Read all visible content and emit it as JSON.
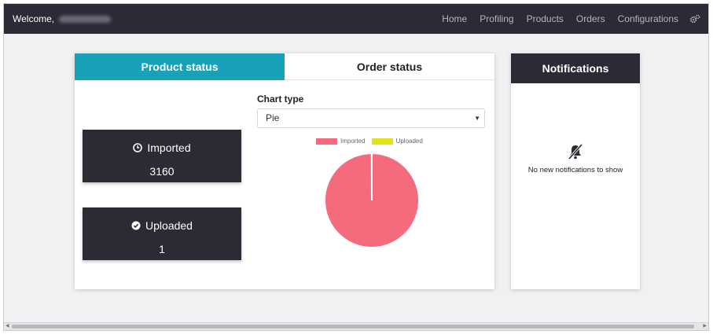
{
  "navbar": {
    "welcome": "Welcome,",
    "links": [
      "Home",
      "Profiling",
      "Products",
      "Orders",
      "Configurations"
    ],
    "settings_icon": "gears-icon"
  },
  "tabs": {
    "product_status": "Product status",
    "order_status": "Order status"
  },
  "stats": {
    "imported": {
      "label": "Imported",
      "value": "3160",
      "icon": "clock-icon"
    },
    "uploaded": {
      "label": "Uploaded",
      "value": "1",
      "icon": "check-circle-icon"
    }
  },
  "chart_controls": {
    "label": "Chart type",
    "selected": "Pie"
  },
  "chart_data": {
    "type": "pie",
    "categories": [
      "Imported",
      "Uploaded"
    ],
    "values": [
      3160,
      1
    ],
    "colors": [
      "#f56b7e",
      "#e0e21a"
    ],
    "legend_position": "top"
  },
  "notifications": {
    "title": "Notifications",
    "empty_text": "No new notifications to show",
    "icon": "bell-slash-icon"
  },
  "colors": {
    "navbar_bg": "#2b2a35",
    "accent": "#18a2b8",
    "imported": "#f56b7e",
    "uploaded": "#e0e21a"
  }
}
